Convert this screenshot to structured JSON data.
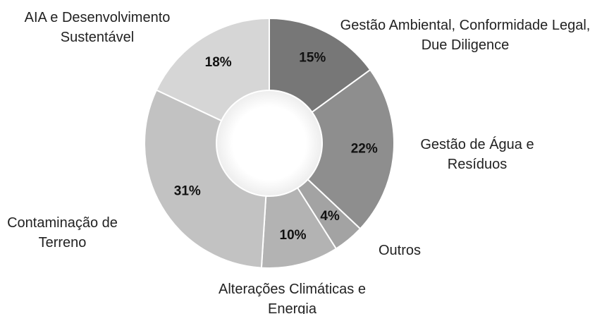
{
  "chart_data": {
    "type": "donut",
    "categories": [
      "Gestão Ambiental, Conformidade Legal, Due Diligence",
      "Gestão de Água e Resíduos",
      "Outros",
      "Alterações Climáticas e Energia",
      "Contaminação de Terreno",
      "AIA e Desenvolvimento Sustentável"
    ],
    "values": [
      15,
      22,
      4,
      10,
      31,
      18
    ],
    "value_labels": [
      "15%",
      "22%",
      "4%",
      "10%",
      "31%",
      "18%"
    ],
    "colors": [
      "#777777",
      "#8e8e8e",
      "#a3a3a3",
      "#b3b3b3",
      "#c2c2c2",
      "#d6d6d6"
    ]
  }
}
